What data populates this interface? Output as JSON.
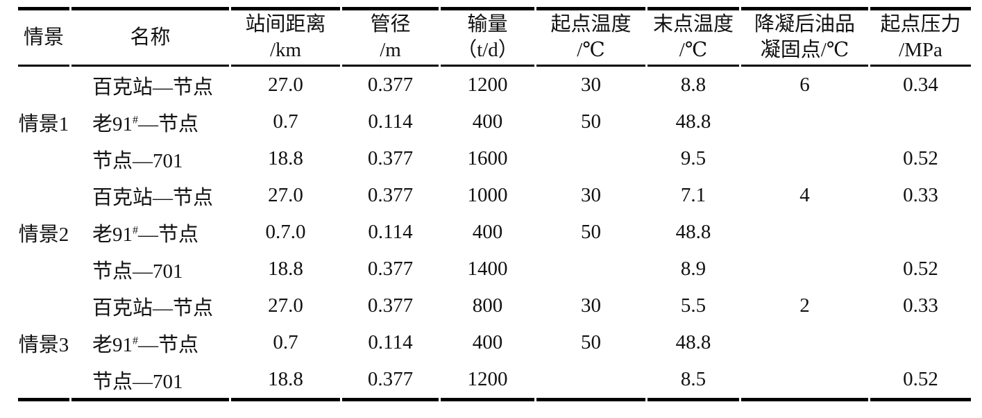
{
  "table": {
    "headers": [
      {
        "line1": "情景",
        "line2": ""
      },
      {
        "line1": "名称",
        "line2": ""
      },
      {
        "line1": "站间距离",
        "line2": "/km"
      },
      {
        "line1": "管径",
        "line2": "/m"
      },
      {
        "line1": "输量",
        "line2": "（t/d）"
      },
      {
        "line1": "起点温度",
        "line2": "/℃"
      },
      {
        "line1": "末点温度",
        "line2": "/℃"
      },
      {
        "line1": "降凝后油品",
        "line2": "凝固点/℃"
      },
      {
        "line1": "起点压力",
        "line2": "/MPa"
      }
    ],
    "groups": [
      {
        "scenario": "情景1",
        "rows": [
          {
            "name": "百克站—节点",
            "distance_km": "27.0",
            "diameter_m": "0.377",
            "throughput_td": "1200",
            "start_temp_c": "30",
            "end_temp_c": "8.8",
            "pour_point_c": "6",
            "start_pressure_mpa": "0.34"
          },
          {
            "name": "老91#—节点",
            "distance_km": "0.7",
            "diameter_m": "0.114",
            "throughput_td": "400",
            "start_temp_c": "50",
            "end_temp_c": "48.8",
            "pour_point_c": "",
            "start_pressure_mpa": ""
          },
          {
            "name": "节点—701",
            "distance_km": "18.8",
            "diameter_m": "0.377",
            "throughput_td": "1600",
            "start_temp_c": "",
            "end_temp_c": "9.5",
            "pour_point_c": "",
            "start_pressure_mpa": "0.52"
          }
        ]
      },
      {
        "scenario": "情景2",
        "rows": [
          {
            "name": "百克站—节点",
            "distance_km": "27.0",
            "diameter_m": "0.377",
            "throughput_td": "1000",
            "start_temp_c": "30",
            "end_temp_c": "7.1",
            "pour_point_c": "4",
            "start_pressure_mpa": "0.33"
          },
          {
            "name": "老91#—节点",
            "distance_km": "0.7.0",
            "diameter_m": "0.114",
            "throughput_td": "400",
            "start_temp_c": "50",
            "end_temp_c": "48.8",
            "pour_point_c": "",
            "start_pressure_mpa": ""
          },
          {
            "name": "节点—701",
            "distance_km": "18.8",
            "diameter_m": "0.377",
            "throughput_td": "1400",
            "start_temp_c": "",
            "end_temp_c": "8.9",
            "pour_point_c": "",
            "start_pressure_mpa": "0.52"
          }
        ]
      },
      {
        "scenario": "情景3",
        "rows": [
          {
            "name": "百克站—节点",
            "distance_km": "27.0",
            "diameter_m": "0.377",
            "throughput_td": "800",
            "start_temp_c": "30",
            "end_temp_c": "5.5",
            "pour_point_c": "2",
            "start_pressure_mpa": "0.33"
          },
          {
            "name": "老91#—节点",
            "distance_km": "0.7",
            "diameter_m": "0.114",
            "throughput_td": "400",
            "start_temp_c": "50",
            "end_temp_c": "48.8",
            "pour_point_c": "",
            "start_pressure_mpa": ""
          },
          {
            "name": "节点—701",
            "distance_km": "18.8",
            "diameter_m": "0.377",
            "throughput_td": "1200",
            "start_temp_c": "",
            "end_temp_c": "8.5",
            "pour_point_c": "",
            "start_pressure_mpa": "0.52"
          }
        ]
      }
    ]
  }
}
